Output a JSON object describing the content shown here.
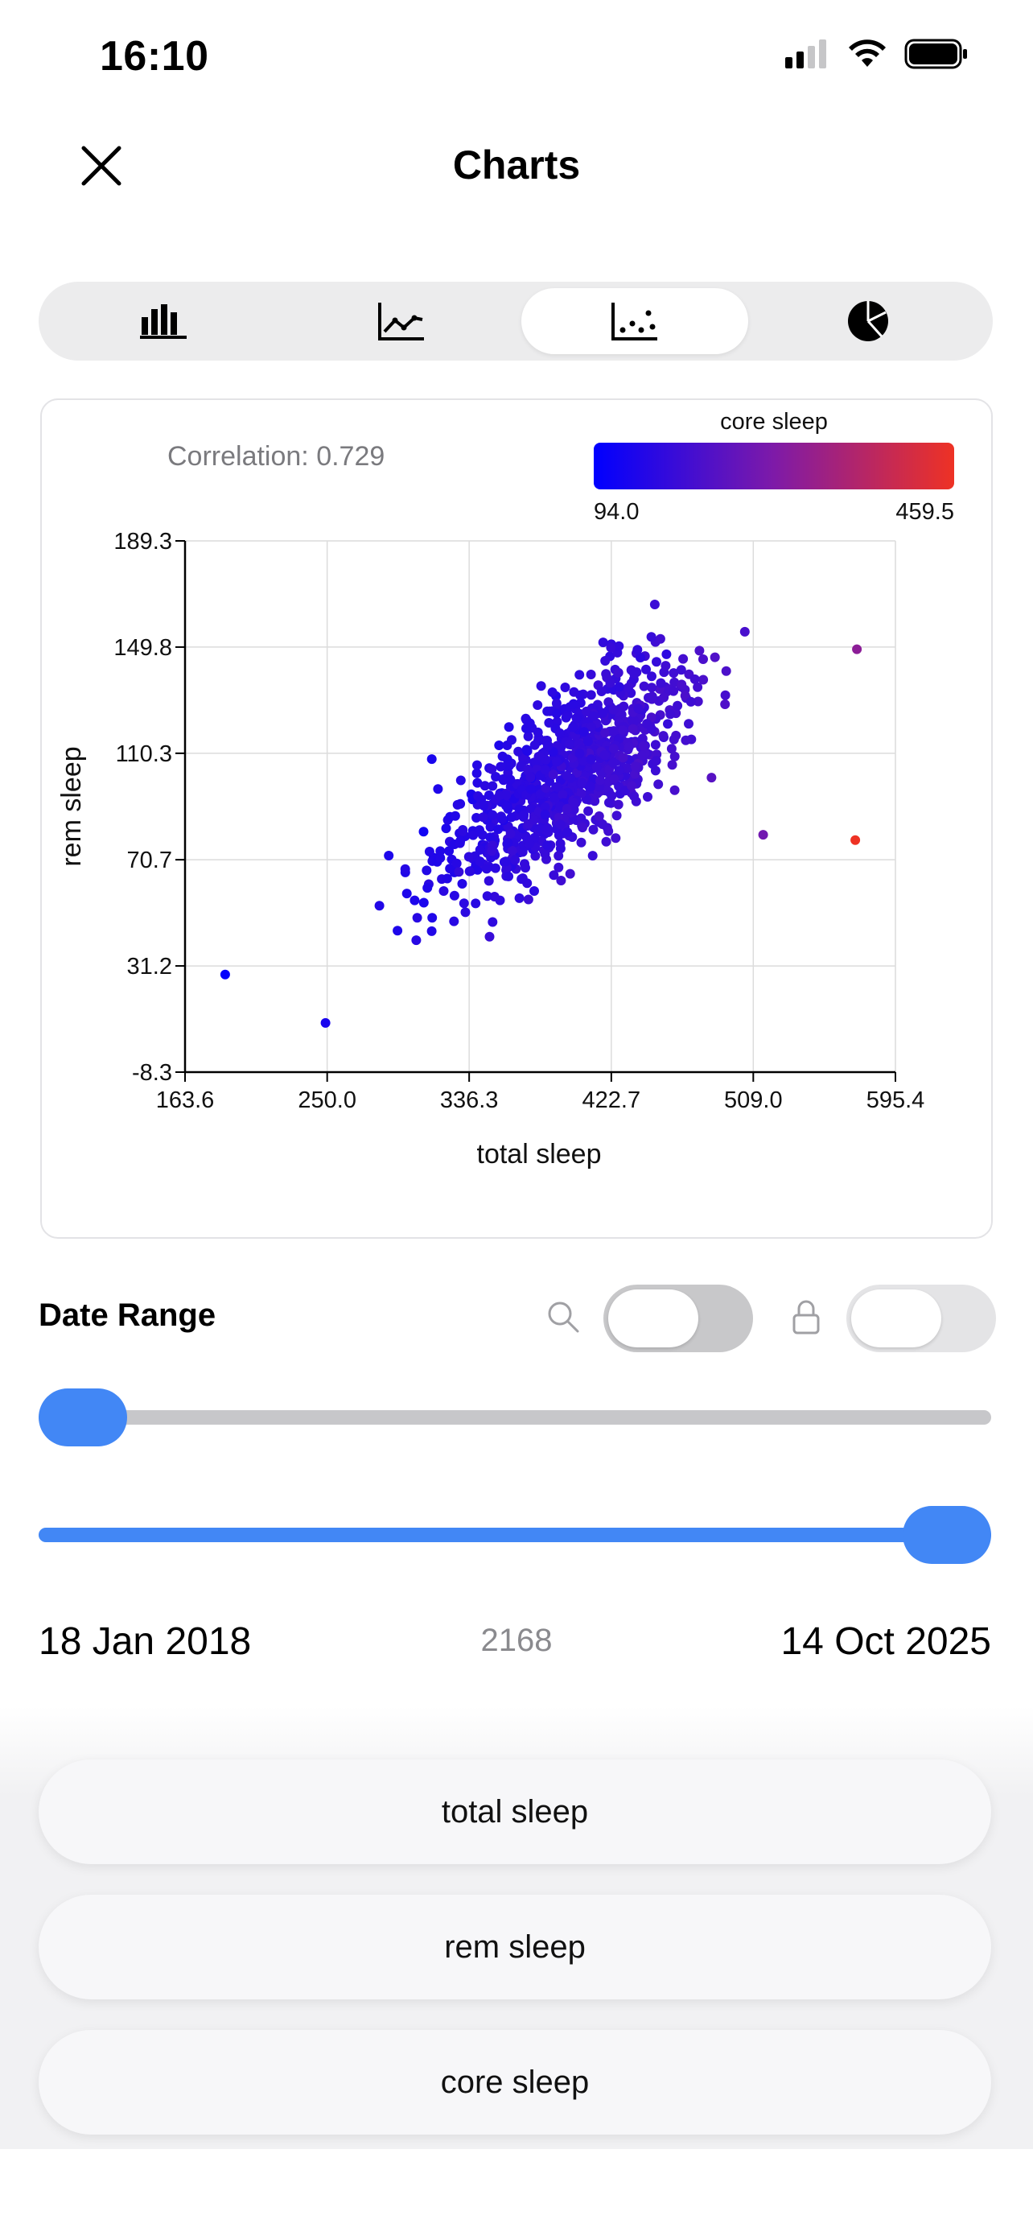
{
  "status": {
    "time": "16:10"
  },
  "header": {
    "title": "Charts",
    "close_icon": "close-icon"
  },
  "tabs": [
    {
      "name": "bar-chart-icon",
      "selected": false
    },
    {
      "name": "line-chart-icon",
      "selected": false
    },
    {
      "name": "scatter-chart-icon",
      "selected": true
    },
    {
      "name": "pie-chart-icon",
      "selected": false
    }
  ],
  "chart_data": {
    "type": "scatter",
    "correlation_label": "Correlation: 0.729",
    "xlabel": "total sleep",
    "ylabel": "rem sleep",
    "xlim": [
      163.6,
      595.4
    ],
    "ylim": [
      -8.3,
      189.3
    ],
    "xticks": [
      "163.6",
      "250.0",
      "336.3",
      "422.7",
      "509.0",
      "595.4"
    ],
    "yticks": [
      "189.3",
      "149.8",
      "110.3",
      "70.7",
      "31.2",
      "-8.3"
    ],
    "color_label": "core sleep",
    "color_min": "94.0",
    "color_max": "459.5",
    "colors": {
      "low": "#0000ff",
      "mid": "#7e1aa8",
      "high": "#ee3224"
    },
    "seed": 7,
    "n_points": 900,
    "outliers": [
      {
        "x": 571,
        "y": 78,
        "c": 459.5
      },
      {
        "x": 572,
        "y": 149,
        "c": 300
      },
      {
        "x": 515,
        "y": 80,
        "c": 260
      },
      {
        "x": 188,
        "y": 28,
        "c": 100
      },
      {
        "x": 249,
        "y": 10,
        "c": 130
      }
    ]
  },
  "date_range": {
    "label": "Date Range",
    "search_icon": "search-icon",
    "lock_icon": "lock-icon",
    "start_date": "18 Jan 2018",
    "end_date": "14 Oct 2025",
    "count": "2168",
    "start_fraction": 0.0,
    "end_fraction": 1.0,
    "accent": "#4287f5"
  },
  "variables": [
    {
      "label": "total sleep"
    },
    {
      "label": "rem sleep"
    },
    {
      "label": "core sleep"
    }
  ]
}
